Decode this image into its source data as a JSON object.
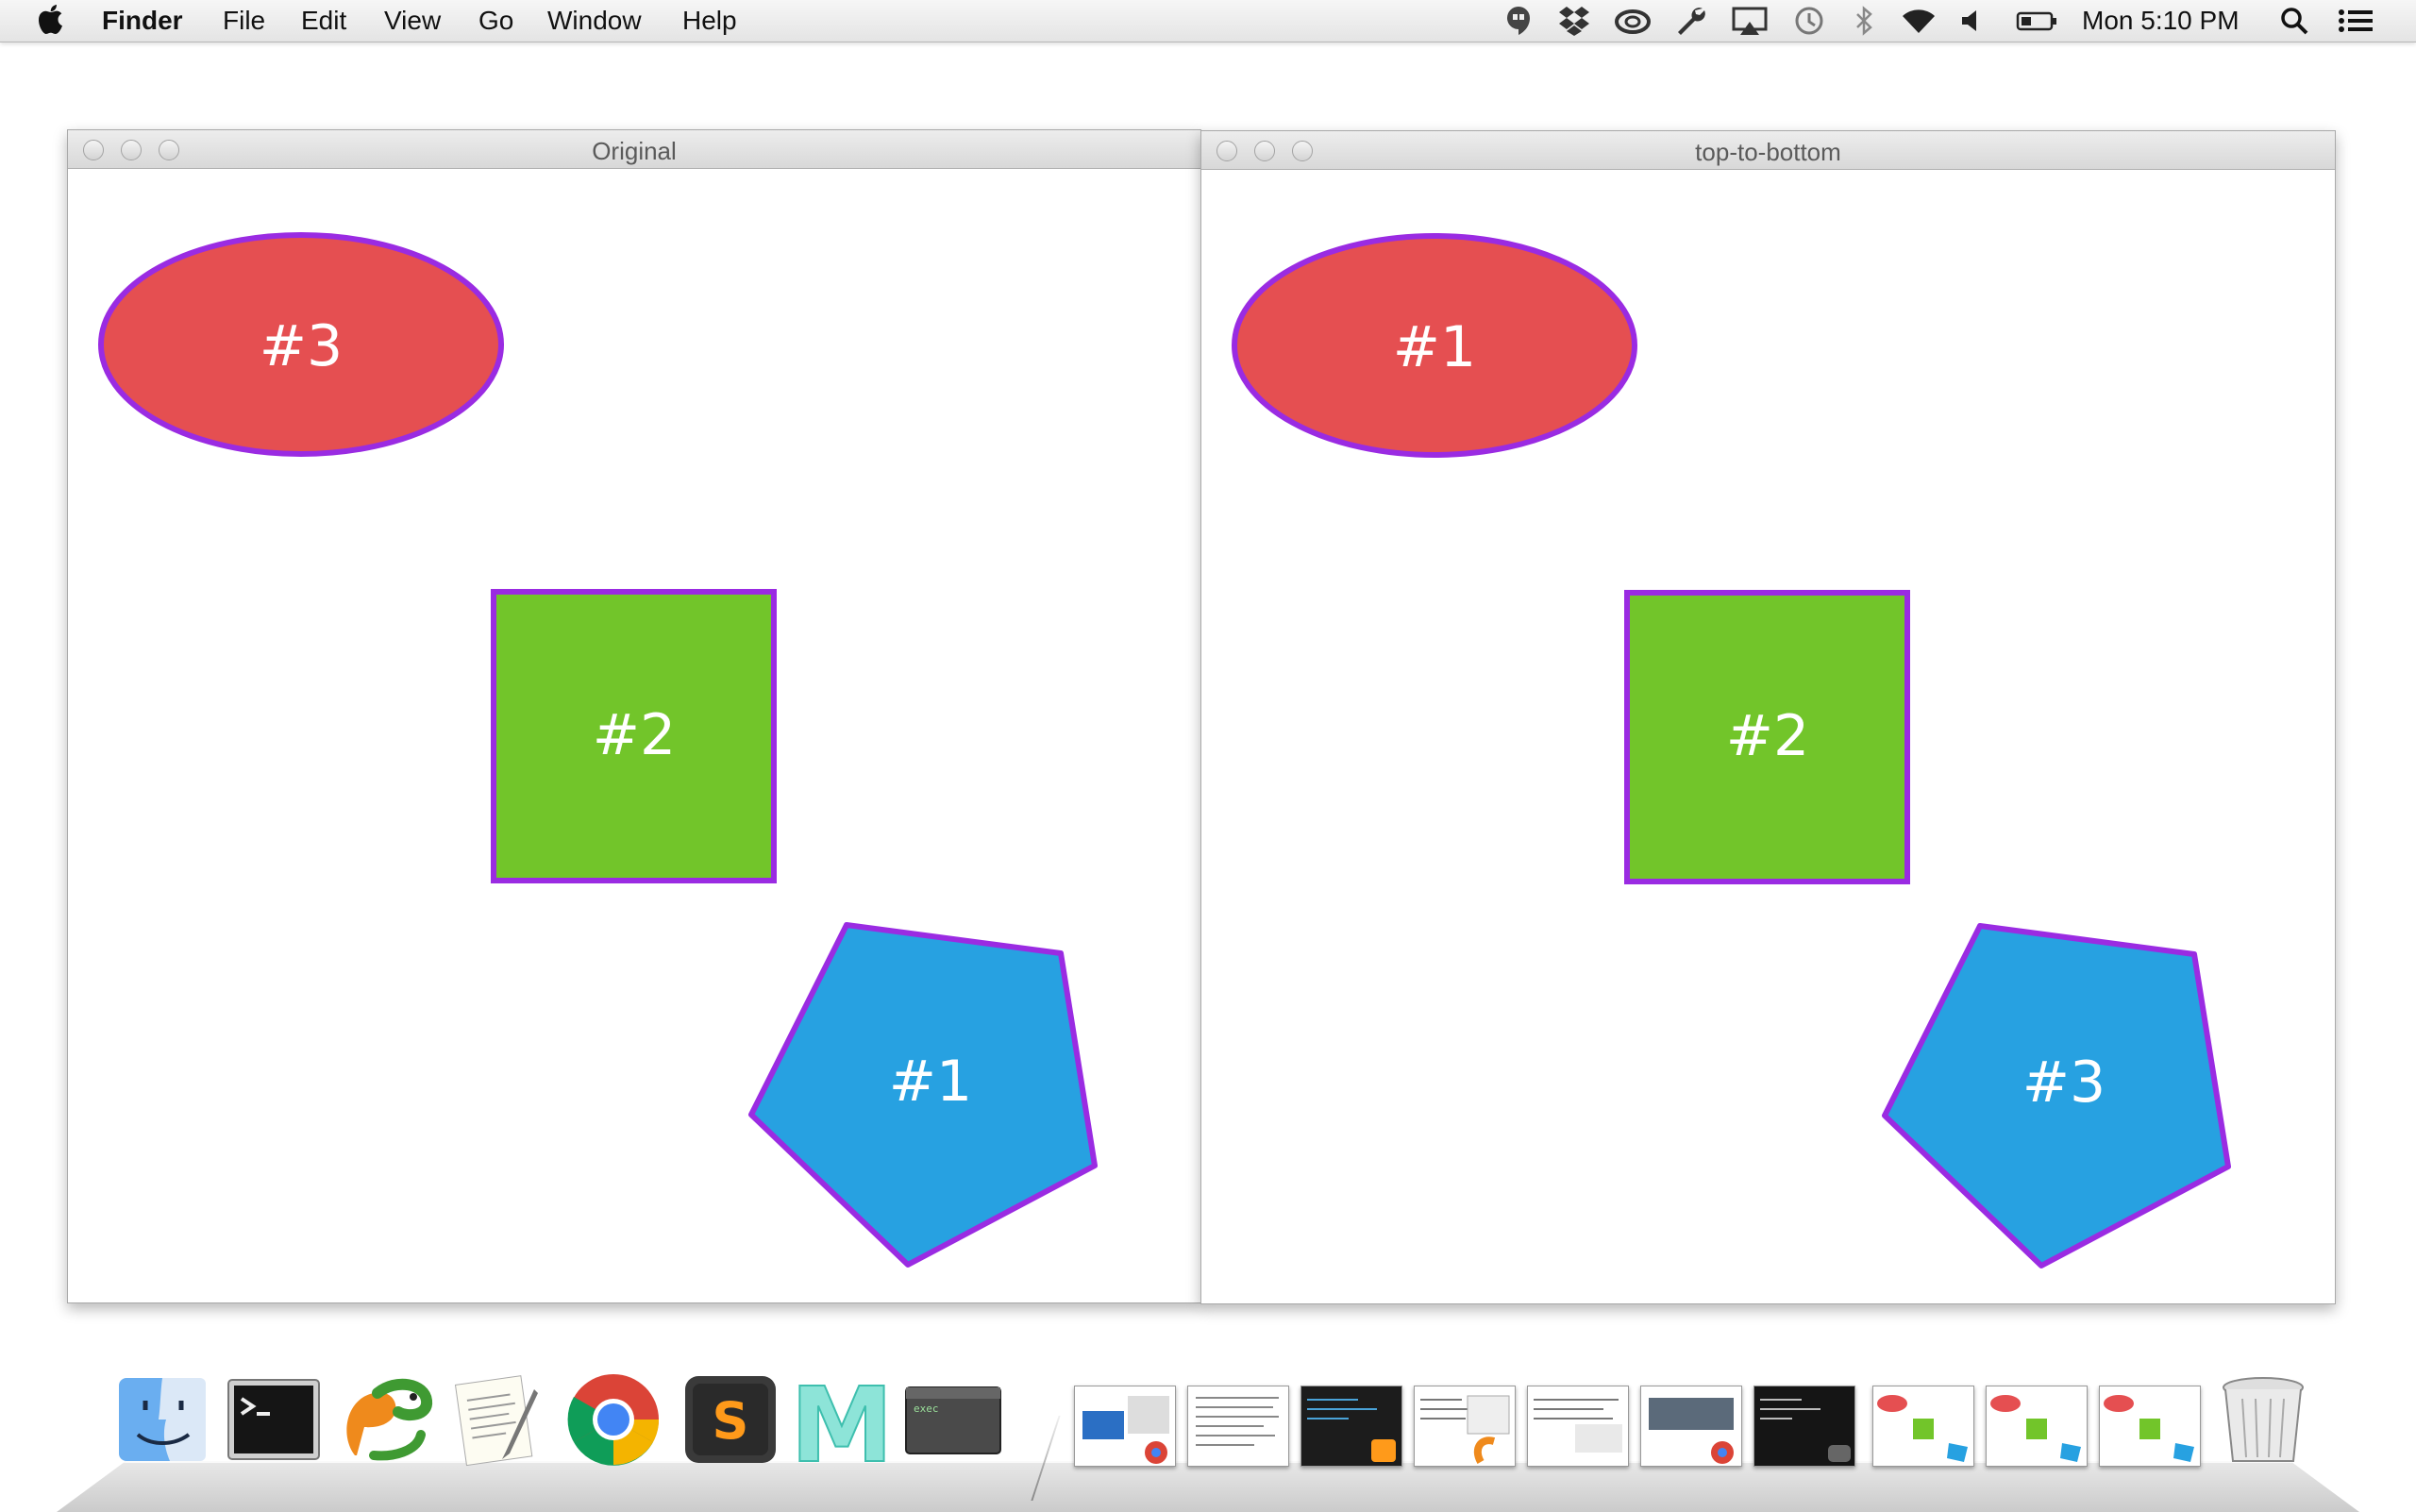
{
  "menubar": {
    "app_name": "Finder",
    "menus": [
      "File",
      "Edit",
      "View",
      "Go",
      "Window",
      "Help"
    ],
    "clock": "Mon 5:10 PM",
    "status_icons": [
      "hangouts-icon",
      "dropbox-icon",
      "creative-cloud-icon",
      "wrench-icon",
      "airplay-icon",
      "time-machine-icon",
      "bluetooth-icon",
      "wifi-icon",
      "volume-icon",
      "battery-icon",
      "spotlight-icon",
      "notification-center-icon"
    ]
  },
  "windows": [
    {
      "title": "Original",
      "shapes": [
        {
          "kind": "ellipse",
          "color": "#e54f51",
          "label": "#3"
        },
        {
          "kind": "square",
          "color": "#72c52a",
          "label": "#2"
        },
        {
          "kind": "pentagon",
          "color": "#27a1e1",
          "label": "#1"
        }
      ]
    },
    {
      "title": "top-to-bottom",
      "shapes": [
        {
          "kind": "ellipse",
          "color": "#e54f51",
          "label": "#1"
        },
        {
          "kind": "square",
          "color": "#72c52a",
          "label": "#2"
        },
        {
          "kind": "pentagon",
          "color": "#27a1e1",
          "label": "#3"
        }
      ]
    }
  ],
  "colors": {
    "outline": "#9a2be2",
    "ellipse": "#e54f51",
    "square": "#72c52a",
    "pentagon": "#27a1e1"
  },
  "dock": {
    "apps": [
      "finder-icon",
      "terminal-icon",
      "pycharm-icon",
      "textedit-icon",
      "chrome-icon",
      "sublime-text-icon",
      "mou-icon",
      "exec-icon"
    ],
    "exec_label": "exec",
    "sublime_letter": "S",
    "mou_letter": "M",
    "minimized_windows": 10,
    "trash": "trash-icon"
  }
}
